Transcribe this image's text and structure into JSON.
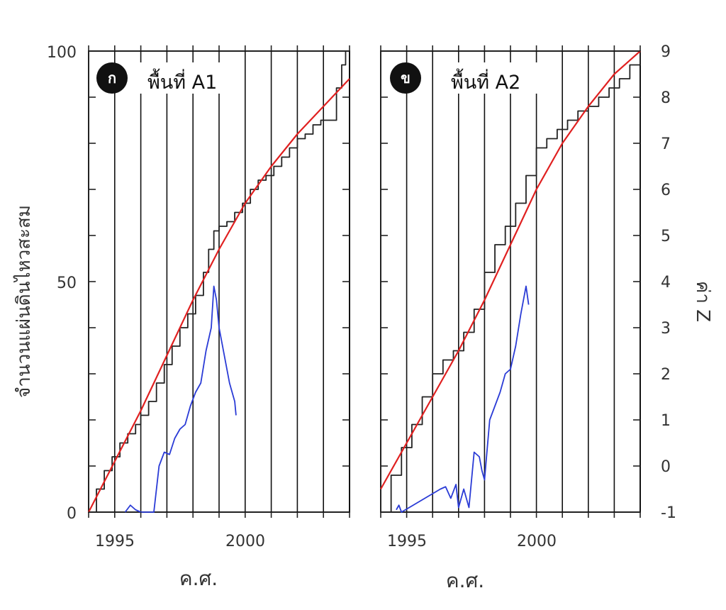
{
  "chart_data": [
    {
      "type": "line",
      "panel": "left",
      "badge": "ก",
      "title": "พื้นที่ A1",
      "xlabel": "ค.ศ.",
      "ylabel": "จำนวนแผ่นดินไหวสะสม",
      "x_ticks": [
        "1995",
        "2000"
      ],
      "y_ticks": [
        "0",
        "50",
        "100"
      ],
      "xlim": [
        1994,
        2004
      ],
      "ylim": [
        0,
        100
      ],
      "vertical_gridlines": [
        1995,
        1996,
        1997,
        1998,
        1999,
        2000,
        2001,
        2002,
        2003,
        2004
      ],
      "series": [
        {
          "axis": "left",
          "color": "#222222",
          "x": [
            1994.0,
            1994.3,
            1994.6,
            1994.9,
            1995.2,
            1995.5,
            1995.8,
            1996.0,
            1996.3,
            1996.6,
            1996.9,
            1997.2,
            1997.5,
            1997.8,
            1998.1,
            1998.4,
            1998.6,
            1998.8,
            1999.0,
            1999.3,
            1999.6,
            1999.9,
            2000.2,
            2000.5,
            2000.8,
            2001.1,
            2001.4,
            2001.7,
            2002.0,
            2002.3,
            2002.6,
            2002.9,
            2003.2,
            2003.5,
            2003.7,
            2003.85
          ],
          "values": [
            0,
            5,
            9,
            12,
            15,
            17,
            19,
            21,
            24,
            28,
            32,
            36,
            40,
            43,
            47,
            52,
            57,
            61,
            62,
            63,
            65,
            67,
            70,
            72,
            73,
            75,
            77,
            79,
            81,
            82,
            84,
            85,
            85,
            92,
            97,
            100
          ]
        },
        {
          "axis": "left",
          "color": "#e02020",
          "x": [
            1994.0,
            1995.0,
            1996.0,
            1997.0,
            1998.0,
            1999.0,
            2000.0,
            2001.0,
            2002.0,
            2003.0,
            2004.0
          ],
          "values": [
            0,
            11,
            22,
            34,
            46,
            57,
            67,
            75,
            82,
            88,
            94
          ]
        },
        {
          "axis": "right",
          "color": "#2a3bd6",
          "x": [
            1995.4,
            1995.6,
            1995.8,
            1996.0,
            1996.2,
            1996.5,
            1996.7,
            1996.9,
            1997.1,
            1997.3,
            1997.5,
            1997.7,
            1997.9,
            1998.1,
            1998.3,
            1998.5,
            1998.7,
            1998.8,
            1998.9,
            1999.0,
            1999.2,
            1999.4,
            1999.6,
            1999.65
          ],
          "values": [
            -1.0,
            -0.85,
            -0.95,
            -1.0,
            -1.0,
            -1.0,
            0.0,
            0.3,
            0.25,
            0.6,
            0.8,
            0.9,
            1.3,
            1.6,
            1.8,
            2.5,
            3.0,
            3.9,
            3.6,
            3.0,
            2.4,
            1.8,
            1.4,
            1.1
          ]
        }
      ]
    },
    {
      "type": "line",
      "panel": "right",
      "badge": "ข",
      "title": "พื้นที่ A2",
      "xlabel": "ค.ศ.",
      "ylabel": "ค่า Z",
      "x_ticks": [
        "1995",
        "2000"
      ],
      "y_ticks": [
        "-1",
        "0",
        "1",
        "2",
        "3",
        "4",
        "5",
        "6",
        "7",
        "8",
        "9"
      ],
      "xlim": [
        1994,
        2004
      ],
      "ylim": [
        -1,
        9
      ],
      "vertical_gridlines": [
        1995,
        1996,
        1997,
        1998,
        1999,
        2000,
        2001,
        2002,
        2003,
        2004
      ],
      "series": [
        {
          "axis": "left",
          "color": "#222222",
          "x": [
            1994.0,
            1994.4,
            1994.8,
            1995.2,
            1995.6,
            1996.0,
            1996.4,
            1996.8,
            1997.2,
            1997.6,
            1998.0,
            1998.4,
            1998.8,
            1999.2,
            1999.6,
            2000.0,
            2000.4,
            2000.8,
            2001.2,
            2001.6,
            2002.0,
            2002.4,
            2002.8,
            2003.2,
            2003.6,
            2004.0
          ],
          "values": [
            0,
            8,
            14,
            19,
            25,
            30,
            33,
            35,
            39,
            44,
            52,
            58,
            62,
            67,
            73,
            79,
            81,
            83,
            85,
            87,
            88,
            90,
            92,
            94,
            97,
            100
          ]
        },
        {
          "axis": "left",
          "color": "#e02020",
          "x": [
            1994.0,
            1995.0,
            1996.0,
            1997.0,
            1998.0,
            1999.0,
            2000.0,
            2001.0,
            2002.0,
            2003.0,
            2004.0
          ],
          "values": [
            5,
            15,
            25,
            35,
            46,
            58,
            70,
            80,
            88,
            95,
            100
          ]
        },
        {
          "axis": "right",
          "color": "#2a3bd6",
          "x": [
            1994.6,
            1994.7,
            1994.8,
            1996.3,
            1996.5,
            1996.7,
            1996.9,
            1997.0,
            1997.2,
            1997.4,
            1997.6,
            1997.8,
            1997.9,
            1998.0,
            1998.2,
            1998.4,
            1998.6,
            1998.8,
            1999.0,
            1999.2,
            1999.4,
            1999.5,
            1999.6,
            1999.7
          ],
          "values": [
            -0.95,
            -0.85,
            -1.0,
            -0.5,
            -0.45,
            -0.7,
            -0.4,
            -0.9,
            -0.5,
            -0.9,
            0.3,
            0.2,
            -0.1,
            -0.3,
            1.0,
            1.3,
            1.6,
            2.0,
            2.1,
            2.6,
            3.3,
            3.6,
            3.9,
            3.5
          ]
        }
      ]
    }
  ]
}
